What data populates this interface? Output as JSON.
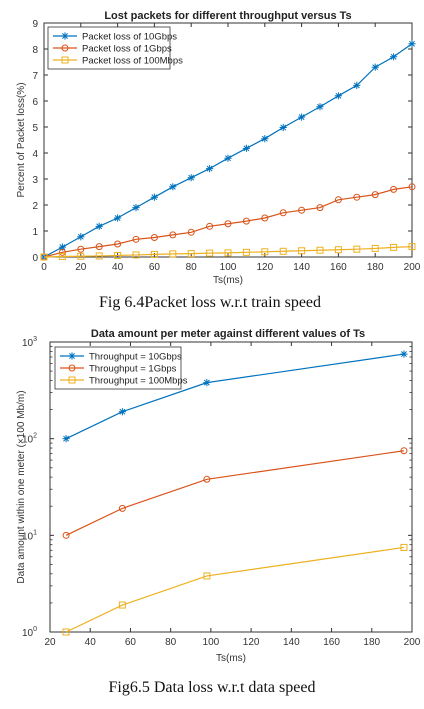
{
  "chart_data": [
    {
      "type": "line",
      "title": "Lost packets for different throughput versus Ts",
      "xlabel": "Ts(ms)",
      "ylabel": "Percent of Packet loss(%)",
      "xlim": [
        0,
        200
      ],
      "ylim": [
        0,
        9
      ],
      "xticks": [
        0,
        20,
        40,
        60,
        80,
        100,
        120,
        140,
        160,
        180,
        200
      ],
      "yticks": [
        0,
        1,
        2,
        3,
        4,
        5,
        6,
        7,
        8,
        9
      ],
      "legend_position": "top-left",
      "grid": false,
      "x": [
        0,
        10,
        20,
        30,
        40,
        50,
        60,
        70,
        80,
        90,
        100,
        110,
        120,
        130,
        140,
        150,
        160,
        170,
        180,
        190,
        200
      ],
      "series": [
        {
          "name": "Packet loss of 10Gbps",
          "color": "#0072BD",
          "marker": "star",
          "values": [
            0,
            0.38,
            0.78,
            1.18,
            1.5,
            1.9,
            2.3,
            2.7,
            3.05,
            3.4,
            3.8,
            4.18,
            4.55,
            4.98,
            5.38,
            5.78,
            6.2,
            6.6,
            7.3,
            7.7,
            8.2
          ]
        },
        {
          "name": "Packet loss of 1Gbps",
          "color": "#D95319",
          "marker": "circle",
          "values": [
            0,
            0.18,
            0.3,
            0.4,
            0.5,
            0.68,
            0.75,
            0.85,
            0.95,
            1.18,
            1.28,
            1.38,
            1.5,
            1.7,
            1.8,
            1.9,
            2.2,
            2.3,
            2.4,
            2.6,
            2.7
          ]
        },
        {
          "name": "Packet loss of 100Mbps",
          "color": "#EDB120",
          "marker": "square",
          "values": [
            0,
            0.02,
            0.03,
            0.04,
            0.06,
            0.08,
            0.1,
            0.12,
            0.13,
            0.15,
            0.16,
            0.18,
            0.2,
            0.22,
            0.24,
            0.26,
            0.28,
            0.3,
            0.33,
            0.37,
            0.4
          ]
        }
      ]
    },
    {
      "type": "line",
      "title": "Data amount per meter against different values of Ts",
      "xlabel": "Ts(ms)",
      "ylabel": "Data amount within one meter (×100 Mb/m)",
      "xlim": [
        20,
        200
      ],
      "ylim": [
        1,
        1000
      ],
      "yscale": "log",
      "xticks": [
        20,
        40,
        60,
        80,
        100,
        120,
        140,
        160,
        180,
        200
      ],
      "yticks": [
        1,
        10,
        100,
        1000
      ],
      "ytick_labels": [
        {
          "base": "10",
          "exp": "0"
        },
        {
          "base": "10",
          "exp": "1"
        },
        {
          "base": "10",
          "exp": "2"
        },
        {
          "base": "10",
          "exp": "3"
        }
      ],
      "legend_position": "top-left",
      "grid": false,
      "x": [
        28,
        56,
        98,
        196
      ],
      "series": [
        {
          "name": "Throughput = 10Gbps",
          "color": "#0072BD",
          "marker": "star",
          "values": [
            100,
            190,
            380,
            750
          ]
        },
        {
          "name": "Throughput = 1Gbps",
          "color": "#D95319",
          "marker": "circle",
          "values": [
            10,
            19,
            38,
            75
          ]
        },
        {
          "name": "Throughput = 100Mbps",
          "color": "#EDB120",
          "marker": "square",
          "values": [
            1,
            1.9,
            3.8,
            7.5
          ]
        }
      ]
    }
  ],
  "captions": {
    "fig1": "Fig 6.4Packet loss w.r.t train speed",
    "fig2": "Fig6.5 Data loss w.r.t data speed"
  }
}
